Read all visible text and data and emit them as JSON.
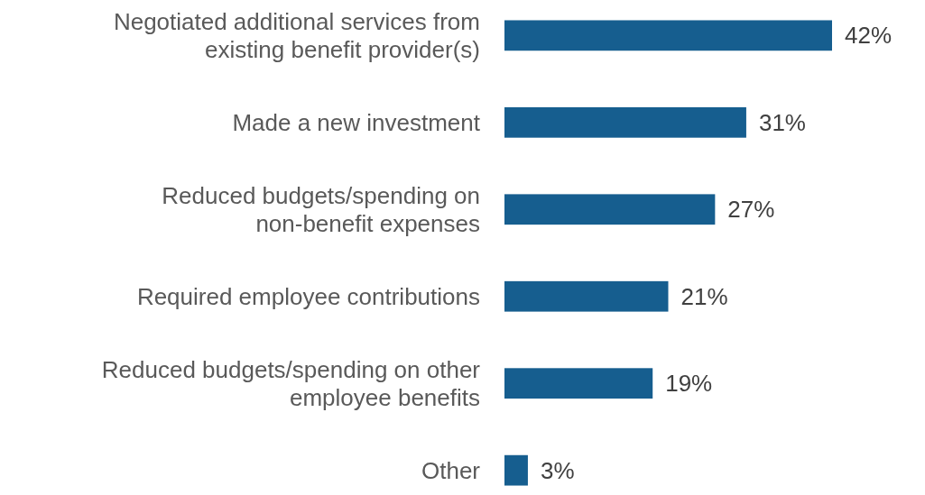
{
  "chart_data": {
    "type": "bar",
    "orientation": "horizontal",
    "categories": [
      "Negotiated additional services from existing benefit provider(s)",
      "Made a new investment",
      "Reduced budgets/spending on non-benefit expenses",
      "Required employee contributions",
      "Reduced budgets/spending on other employee benefits",
      "Other"
    ],
    "values": [
      42,
      31,
      27,
      21,
      19,
      3
    ],
    "value_labels": [
      "42%",
      "31%",
      "27%",
      "21%",
      "19%",
      "3%"
    ],
    "color": "#165e8f"
  }
}
